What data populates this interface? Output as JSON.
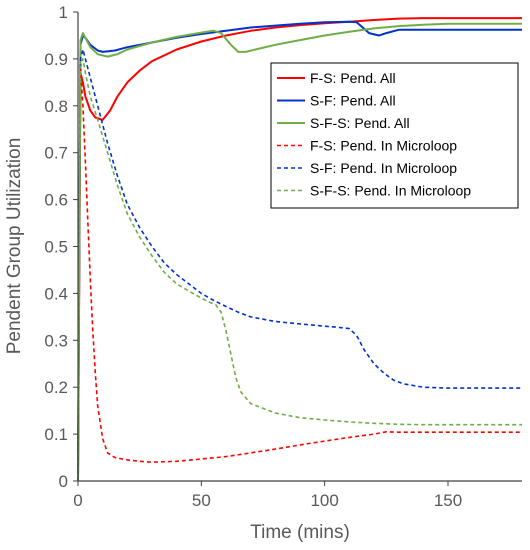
{
  "chart_data": {
    "type": "line",
    "title": "",
    "xlabel": "Time (mins)",
    "ylabel": "Pendent Group Utilization",
    "xlim": [
      0,
      180
    ],
    "ylim": [
      0,
      1
    ],
    "xticks": [
      0,
      50,
      100,
      150
    ],
    "yticks": [
      0,
      0.1,
      0.2,
      0.3,
      0.4,
      0.5,
      0.6,
      0.7,
      0.8,
      0.9,
      1
    ],
    "xtick_labels": [
      "0",
      "50",
      "100",
      "150"
    ],
    "ytick_labels": [
      "0",
      "0.1",
      "0.2",
      "0.3",
      "0.4",
      "0.5",
      "0.6",
      "0.7",
      "0.8",
      "0.9",
      "1"
    ],
    "grid": false,
    "legend_position": "top-right",
    "series": [
      {
        "name": "F-S: Pend. All",
        "color": "#ff0000",
        "dash": "solid",
        "x": [
          0,
          1,
          2,
          3,
          5,
          7,
          10,
          13,
          16,
          20,
          25,
          30,
          40,
          50,
          60,
          70,
          80,
          90,
          100,
          110,
          120,
          130,
          140,
          150,
          160,
          170,
          180
        ],
        "y": [
          0,
          0.87,
          0.85,
          0.82,
          0.79,
          0.775,
          0.77,
          0.79,
          0.82,
          0.85,
          0.875,
          0.895,
          0.92,
          0.937,
          0.95,
          0.96,
          0.967,
          0.972,
          0.976,
          0.979,
          0.983,
          0.986,
          0.987,
          0.987,
          0.987,
          0.987,
          0.987
        ]
      },
      {
        "name": "S-F: Pend. All",
        "color": "#0033cc",
        "dash": "solid",
        "x": [
          0,
          1,
          2,
          3,
          5,
          8,
          10,
          15,
          20,
          30,
          40,
          50,
          60,
          70,
          80,
          90,
          100,
          110,
          113,
          118,
          122,
          125,
          130,
          140,
          150,
          160,
          170,
          180
        ],
        "y": [
          0,
          0.93,
          0.95,
          0.945,
          0.93,
          0.918,
          0.915,
          0.918,
          0.925,
          0.935,
          0.945,
          0.953,
          0.96,
          0.967,
          0.971,
          0.975,
          0.978,
          0.979,
          0.978,
          0.955,
          0.95,
          0.955,
          0.962,
          0.962,
          0.962,
          0.962,
          0.962,
          0.962
        ]
      },
      {
        "name": "S-F-S: Pend. All",
        "color": "#70ad47",
        "dash": "solid",
        "x": [
          0,
          1,
          2,
          3,
          5,
          8,
          12,
          16,
          20,
          30,
          40,
          50,
          55,
          58,
          62,
          65,
          68,
          72,
          80,
          90,
          100,
          110,
          120,
          130,
          140,
          150,
          160,
          170,
          180
        ],
        "y": [
          0,
          0.94,
          0.955,
          0.945,
          0.925,
          0.91,
          0.905,
          0.91,
          0.92,
          0.935,
          0.947,
          0.956,
          0.96,
          0.955,
          0.93,
          0.915,
          0.915,
          0.92,
          0.93,
          0.94,
          0.95,
          0.958,
          0.965,
          0.97,
          0.973,
          0.975,
          0.975,
          0.975,
          0.975
        ]
      },
      {
        "name": "F-S: Pend. In Microloop",
        "color": "#ff0000",
        "dash": "dashed",
        "x": [
          0,
          1,
          2,
          3,
          4,
          5,
          6,
          7,
          8,
          10,
          12,
          15,
          20,
          25,
          30,
          40,
          50,
          60,
          70,
          80,
          90,
          100,
          110,
          120,
          125,
          130,
          140,
          150,
          160,
          170,
          180
        ],
        "y": [
          0,
          0.88,
          0.8,
          0.68,
          0.55,
          0.43,
          0.32,
          0.23,
          0.16,
          0.09,
          0.06,
          0.05,
          0.045,
          0.042,
          0.04,
          0.042,
          0.047,
          0.052,
          0.06,
          0.068,
          0.077,
          0.085,
          0.093,
          0.1,
          0.105,
          0.104,
          0.104,
          0.104,
          0.104,
          0.104,
          0.104
        ]
      },
      {
        "name": "S-F: Pend. In Microloop",
        "color": "#0033cc",
        "dash": "dashed",
        "x": [
          0,
          1,
          2,
          3,
          5,
          8,
          12,
          16,
          20,
          25,
          30,
          35,
          40,
          45,
          50,
          55,
          60,
          65,
          70,
          80,
          90,
          100,
          105,
          110,
          113,
          116,
          120,
          124,
          128,
          132,
          140,
          150,
          160,
          170,
          180
        ],
        "y": [
          0,
          0.9,
          0.92,
          0.9,
          0.86,
          0.8,
          0.72,
          0.65,
          0.59,
          0.54,
          0.5,
          0.465,
          0.44,
          0.42,
          0.4,
          0.385,
          0.372,
          0.36,
          0.35,
          0.34,
          0.335,
          0.33,
          0.328,
          0.325,
          0.31,
          0.28,
          0.25,
          0.23,
          0.215,
          0.207,
          0.2,
          0.198,
          0.198,
          0.198,
          0.198
        ]
      },
      {
        "name": "S-F-S: Pend. In Microloop",
        "color": "#70ad47",
        "dash": "dashed",
        "x": [
          0,
          1,
          2,
          3,
          5,
          8,
          12,
          16,
          20,
          25,
          30,
          35,
          40,
          45,
          50,
          53,
          56,
          58,
          60,
          62,
          64,
          66,
          70,
          80,
          90,
          100,
          110,
          120,
          130,
          140,
          150,
          160,
          170,
          180
        ],
        "y": [
          0,
          0.88,
          0.9,
          0.87,
          0.82,
          0.77,
          0.7,
          0.63,
          0.57,
          0.52,
          0.48,
          0.445,
          0.42,
          0.405,
          0.39,
          0.382,
          0.375,
          0.36,
          0.32,
          0.27,
          0.22,
          0.19,
          0.165,
          0.145,
          0.135,
          0.13,
          0.126,
          0.123,
          0.121,
          0.12,
          0.12,
          0.12,
          0.12,
          0.12
        ]
      }
    ]
  }
}
